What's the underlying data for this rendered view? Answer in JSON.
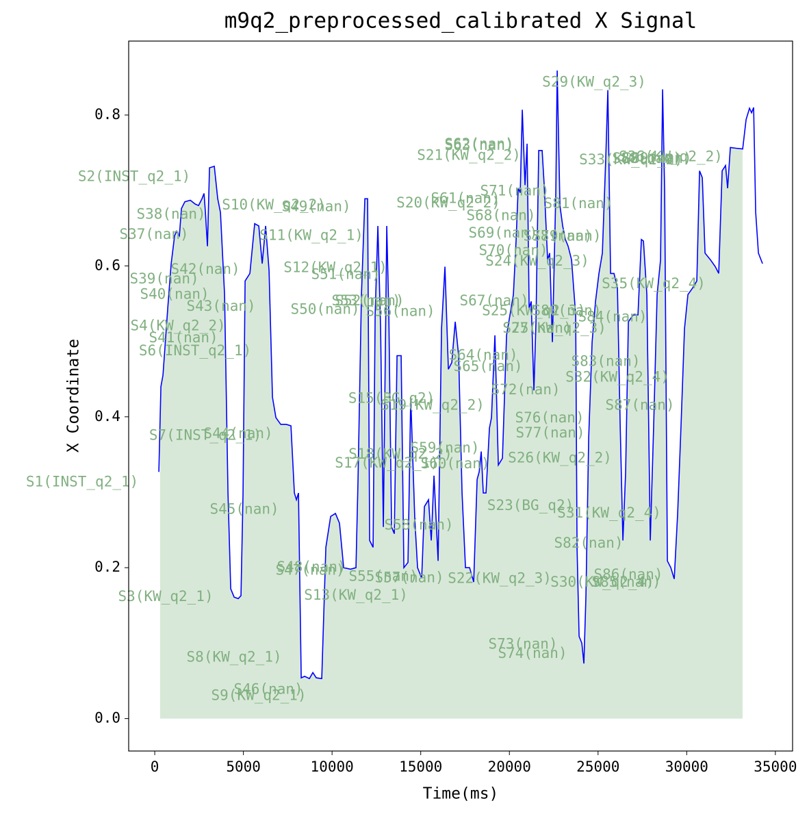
{
  "chart_data": {
    "type": "line",
    "title": "m9q2_preprocessed_calibrated X Signal",
    "xlabel": "Time(ms)",
    "ylabel": "X Coordinate",
    "color": "#0000ff",
    "shade_color": "#8fbc8f",
    "shaded_span": [
      300,
      33150
    ],
    "xlim": [
      -1470,
      35970
    ],
    "ylim": [
      -0.043,
      0.898
    ],
    "xticks": [
      0,
      5000,
      10000,
      15000,
      20000,
      25000,
      30000,
      35000
    ],
    "yticks": [
      {
        "value": 0,
        "label": "0.0"
      },
      0.2,
      0.4,
      0.6,
      0.8
    ],
    "x": [
      232,
      347,
      463,
      733,
      926,
      1119,
      1235,
      1390,
      1505,
      1698,
      2007,
      2277,
      2470,
      2663,
      2779,
      2856,
      2972,
      3088,
      3358,
      3551,
      3706,
      3937,
      4130,
      4285,
      4477,
      4709,
      4863,
      4979,
      5095,
      5365,
      5635,
      5867,
      6060,
      6253,
      6446,
      6639,
      6832,
      7102,
      7411,
      7681,
      7874,
      7990,
      8106,
      8260,
      8453,
      8723,
      8916,
      9109,
      9417,
      9649,
      9919,
      10189,
      10420,
      10652,
      11040,
      11348,
      11464,
      11657,
      11850,
      12004,
      12120,
      12313,
      12429,
      12583,
      12738,
      12892,
      13084,
      13200,
      13355,
      13509,
      13664,
      13896,
      14050,
      14282,
      14436,
      14668,
      14822,
      15054,
      15208,
      15440,
      15594,
      15749,
      15980,
      16173,
      16366,
      16559,
      16752,
      16945,
      17138,
      17331,
      17524,
      17756,
      17988,
      18181,
      18296,
      18412,
      18528,
      18682,
      18875,
      18991,
      19184,
      19377,
      19608,
      19840,
      20033,
      20226,
      20380,
      20496,
      20612,
      20728,
      20882,
      20998,
      21113,
      21229,
      21384,
      21500,
      21654,
      21847,
      21963,
      22156,
      22272,
      22426,
      22619,
      22697,
      22851,
      23005,
      23160,
      23314,
      23507,
      23623,
      23739,
      23816,
      23932,
      24086,
      24202,
      24318,
      24472,
      24665,
      24858,
      25051,
      25244,
      25437,
      25553,
      25707,
      25900,
      26093,
      26247,
      26402,
      26556,
      26710,
      26980,
      27250,
      27443,
      27559,
      27752,
      27945,
      28138,
      28331,
      28524,
      28640,
      28756,
      28911,
      29104,
      29297,
      29490,
      29683,
      29876,
      30069,
      30340,
      30571,
      30726,
      30880,
      31034,
      31343,
      31613,
      31806,
      31999,
      32192,
      32308,
      32462,
      32771,
      33157,
      33350,
      33543,
      33659,
      33775,
      33891,
      34045,
      34277
    ],
    "values": [
      0.327,
      0.44,
      0.455,
      0.544,
      0.603,
      0.64,
      0.646,
      0.64,
      0.676,
      0.685,
      0.687,
      0.682,
      0.68,
      0.689,
      0.696,
      0.671,
      0.626,
      0.73,
      0.732,
      0.689,
      0.671,
      0.562,
      0.299,
      0.172,
      0.161,
      0.159,
      0.163,
      0.299,
      0.58,
      0.59,
      0.656,
      0.653,
      0.603,
      0.653,
      0.594,
      0.426,
      0.399,
      0.39,
      0.39,
      0.388,
      0.299,
      0.29,
      0.299,
      0.054,
      0.056,
      0.053,
      0.061,
      0.054,
      0.053,
      0.227,
      0.268,
      0.272,
      0.259,
      0.2,
      0.198,
      0.2,
      0.317,
      0.562,
      0.689,
      0.689,
      0.236,
      0.227,
      0.535,
      0.653,
      0.517,
      0.254,
      0.653,
      0.535,
      0.254,
      0.245,
      0.481,
      0.481,
      0.2,
      0.207,
      0.426,
      0.263,
      0.2,
      0.186,
      0.281,
      0.29,
      0.236,
      0.322,
      0.209,
      0.517,
      0.599,
      0.463,
      0.472,
      0.526,
      0.481,
      0.299,
      0.2,
      0.2,
      0.181,
      0.317,
      0.327,
      0.354,
      0.299,
      0.299,
      0.385,
      0.399,
      0.508,
      0.336,
      0.345,
      0.508,
      0.535,
      0.562,
      0.635,
      0.703,
      0.697,
      0.807,
      0.707,
      0.762,
      0.544,
      0.553,
      0.435,
      0.526,
      0.753,
      0.753,
      0.707,
      0.608,
      0.617,
      0.499,
      0.698,
      0.859,
      0.68,
      0.653,
      0.635,
      0.626,
      0.608,
      0.571,
      0.535,
      0.227,
      0.109,
      0.1,
      0.073,
      0.163,
      0.372,
      0.499,
      0.553,
      0.59,
      0.617,
      0.744,
      0.833,
      0.59,
      0.59,
      0.571,
      0.39,
      0.236,
      0.327,
      0.526,
      0.535,
      0.535,
      0.635,
      0.633,
      0.562,
      0.236,
      0.39,
      0.562,
      0.608,
      0.834,
      0.698,
      0.209,
      0.2,
      0.185,
      0.272,
      0.39,
      0.517,
      0.562,
      0.571,
      0.58,
      0.726,
      0.717,
      0.617,
      0.608,
      0.599,
      0.59,
      0.726,
      0.733,
      0.703,
      0.757,
      0.756,
      0.755,
      0.794,
      0.809,
      0.803,
      0.81,
      0.671,
      0.617,
      0.603
    ],
    "annotation_color": "#80b080",
    "annotations": [
      {
        "text": "S1(INST_q2_1)",
        "x": -4091,
        "y": 0.313
      },
      {
        "text": "S2(INST_q2_1)",
        "x": -1158,
        "y": 0.718
      },
      {
        "text": "S3(KW_q2_1)",
        "x": 617,
        "y": 0.161
      },
      {
        "text": "S4(KW_q2_2)",
        "x": 1312,
        "y": 0.52
      },
      {
        "text": "S6(INST_q2_1)",
        "x": 2277,
        "y": 0.487
      },
      {
        "text": "S7(INST_q2_1)",
        "x": 2856,
        "y": 0.375
      },
      {
        "text": "S8(KW_q2_1)",
        "x": 4477,
        "y": 0.081
      },
      {
        "text": "S9(KW_q2_1)",
        "x": 5866,
        "y": 0.03
      },
      {
        "text": "S10(KW_q2_2)",
        "x": 6716,
        "y": 0.68
      },
      {
        "text": "S11(KW_q2_1)",
        "x": 8838,
        "y": 0.64
      },
      {
        "text": "S12(KW_q2_1)",
        "x": 10189,
        "y": 0.597
      },
      {
        "text": "S13(KW_q2_1)",
        "x": 11347,
        "y": 0.163
      },
      {
        "text": "S15(BG_q2)",
        "x": 13354,
        "y": 0.424
      },
      {
        "text": "S19(KW_q2_2)",
        "x": 15669,
        "y": 0.415
      },
      {
        "text": "S17(KW_q2_1)",
        "x": 13084,
        "y": 0.338
      },
      {
        "text": "S18(KW_q2_2)",
        "x": 13856,
        "y": 0.35
      },
      {
        "text": "S20(KW_q2_2)",
        "x": 16557,
        "y": 0.683
      },
      {
        "text": "S21(KW_q2_2)",
        "x": 17715,
        "y": 0.746
      },
      {
        "text": "S22(KW_q2_3)",
        "x": 19452,
        "y": 0.185
      },
      {
        "text": "S23(BG_q2)",
        "x": 21188,
        "y": 0.282
      },
      {
        "text": "S24(KW_q2_3)",
        "x": 21574,
        "y": 0.606
      },
      {
        "text": "S25(KW_q2_3)",
        "x": 21381,
        "y": 0.54
      },
      {
        "text": "S26(KW_q2_2)",
        "x": 22848,
        "y": 0.345
      },
      {
        "text": "S27(KW_q2_3)",
        "x": 22540,
        "y": 0.517
      },
      {
        "text": "S29(KW_q2_3)",
        "x": 24778,
        "y": 0.843
      },
      {
        "text": "S30(KW_q2_4)",
        "x": 25241,
        "y": 0.18
      },
      {
        "text": "S31(KW_q2_4)",
        "x": 25627,
        "y": 0.272
      },
      {
        "text": "S32(KW_q2_4)",
        "x": 26090,
        "y": 0.452
      },
      {
        "text": "S33(KW_q2_2)",
        "x": 26862,
        "y": 0.74
      },
      {
        "text": "S35(KW_q2_4)",
        "x": 28136,
        "y": 0.576
      },
      {
        "text": "S36(KW_q2_2)",
        "x": 29101,
        "y": 0.744
      },
      {
        "text": "S37(nan)",
        "x": -39,
        "y": 0.641
      },
      {
        "text": "S38(nan)",
        "x": 926,
        "y": 0.668
      },
      {
        "text": "S39(nan)",
        "x": 540,
        "y": 0.582
      },
      {
        "text": "S40(nan)",
        "x": 1119,
        "y": 0.562
      },
      {
        "text": "S41(nan)",
        "x": 1621,
        "y": 0.504
      },
      {
        "text": "S42(nan)",
        "x": 2856,
        "y": 0.595
      },
      {
        "text": "S43(nan)",
        "x": 3744,
        "y": 0.546
      },
      {
        "text": "S44(nan)",
        "x": 4709,
        "y": 0.377
      },
      {
        "text": "S45(nan)",
        "x": 5056,
        "y": 0.277
      },
      {
        "text": "S46(nan)",
        "x": 6407,
        "y": 0.038
      },
      {
        "text": "S47(nan)",
        "x": 8761,
        "y": 0.196
      },
      {
        "text": "S48(nan)",
        "x": 8838,
        "y": 0.2
      },
      {
        "text": "S49(nan)",
        "x": 9108,
        "y": 0.678
      },
      {
        "text": "S50(nan)",
        "x": 9610,
        "y": 0.542
      },
      {
        "text": "S51(nan)",
        "x": 10768,
        "y": 0.588
      },
      {
        "text": "S52(nan)",
        "x": 12119,
        "y": 0.553
      },
      {
        "text": "S53(nan)",
        "x": 11926,
        "y": 0.553
      },
      {
        "text": "S55(nan)",
        "x": 12891,
        "y": 0.188
      },
      {
        "text": "S56(nan)",
        "x": 13856,
        "y": 0.539
      },
      {
        "text": "S57(nan)",
        "x": 14357,
        "y": 0.186
      },
      {
        "text": "S58(nan)",
        "x": 14898,
        "y": 0.256
      },
      {
        "text": "S59(nan)",
        "x": 16364,
        "y": 0.358
      },
      {
        "text": "S60(nan)",
        "x": 16943,
        "y": 0.337
      },
      {
        "text": "S61(nan)",
        "x": 17522,
        "y": 0.689
      },
      {
        "text": "S62(nan)",
        "x": 18294,
        "y": 0.761
      },
      {
        "text": "S63(nan)",
        "x": 18294,
        "y": 0.759
      },
      {
        "text": "S64(nan)",
        "x": 18526,
        "y": 0.481
      },
      {
        "text": "S65(nan)",
        "x": 18796,
        "y": 0.466
      },
      {
        "text": "S67(nan)",
        "x": 19143,
        "y": 0.553
      },
      {
        "text": "S68(nan)",
        "x": 19529,
        "y": 0.666
      },
      {
        "text": "S69(nan)",
        "x": 19645,
        "y": 0.643
      },
      {
        "text": "S70(nan)",
        "x": 20224,
        "y": 0.62
      },
      {
        "text": "S71(nan)",
        "x": 20301,
        "y": 0.699
      },
      {
        "text": "S72(nan)",
        "x": 20919,
        "y": 0.435
      },
      {
        "text": "S73(nan)",
        "x": 20764,
        "y": 0.098
      },
      {
        "text": "S74(nan)",
        "x": 21304,
        "y": 0.086
      },
      {
        "text": "S75(nan)",
        "x": 21574,
        "y": 0.517
      },
      {
        "text": "S76(nan)",
        "x": 22269,
        "y": 0.398
      },
      {
        "text": "S77(nan)",
        "x": 22308,
        "y": 0.378
      },
      {
        "text": "S78(nan)",
        "x": 22733,
        "y": 0.639
      },
      {
        "text": "S79(nan)",
        "x": 23234,
        "y": 0.639
      },
      {
        "text": "S80(nan)",
        "x": 23234,
        "y": 0.54
      },
      {
        "text": "S81(nan)",
        "x": 23890,
        "y": 0.682
      },
      {
        "text": "S82(nan)",
        "x": 24469,
        "y": 0.232
      },
      {
        "text": "S83(nan)",
        "x": 25434,
        "y": 0.473
      },
      {
        "text": "S84(nan)",
        "x": 25820,
        "y": 0.532
      },
      {
        "text": "S85(nan)",
        "x": 26592,
        "y": 0.18
      },
      {
        "text": "S86(nan)",
        "x": 26708,
        "y": 0.19
      },
      {
        "text": "S87(nan)",
        "x": 27364,
        "y": 0.415
      },
      {
        "text": "S88(nan)",
        "x": 27750,
        "y": 0.742
      },
      {
        "text": "S89(nan)",
        "x": 28329,
        "y": 0.742
      }
    ]
  }
}
